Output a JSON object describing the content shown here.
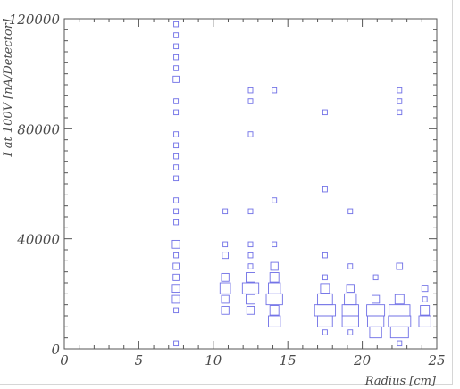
{
  "chart_data": {
    "type": "box_histogram_2d",
    "xlabel": "Radius [cm]",
    "ylabel": "I at 100V [nA/Detector]",
    "xlim": [
      0,
      25
    ],
    "ylim": [
      0,
      120000
    ],
    "x_ticks": [
      "0",
      "5",
      "10",
      "15",
      "20",
      "25"
    ],
    "y_ticks": [
      "0",
      "40000",
      "80000",
      "120000"
    ],
    "x_tick_values": [
      0,
      5,
      10,
      15,
      20,
      25
    ],
    "y_tick_values": [
      0,
      40000,
      80000,
      120000
    ],
    "box_color": "#6f6fe6",
    "bin_height": 2000,
    "cells": [
      {
        "x": 7.5,
        "y": 118000,
        "w": 0.3
      },
      {
        "x": 7.5,
        "y": 114000,
        "w": 0.3
      },
      {
        "x": 7.5,
        "y": 110000,
        "w": 0.3
      },
      {
        "x": 7.5,
        "y": 106000,
        "w": 0.3
      },
      {
        "x": 7.5,
        "y": 102000,
        "w": 0.3
      },
      {
        "x": 7.5,
        "y": 98000,
        "w": 0.4
      },
      {
        "x": 7.5,
        "y": 90000,
        "w": 0.3
      },
      {
        "x": 7.5,
        "y": 86000,
        "w": 0.3
      },
      {
        "x": 7.5,
        "y": 78000,
        "w": 0.3
      },
      {
        "x": 7.5,
        "y": 74000,
        "w": 0.3
      },
      {
        "x": 7.5,
        "y": 70000,
        "w": 0.3
      },
      {
        "x": 7.5,
        "y": 66000,
        "w": 0.3
      },
      {
        "x": 7.5,
        "y": 62000,
        "w": 0.3
      },
      {
        "x": 7.5,
        "y": 54000,
        "w": 0.3
      },
      {
        "x": 7.5,
        "y": 50000,
        "w": 0.3
      },
      {
        "x": 7.5,
        "y": 46000,
        "w": 0.3
      },
      {
        "x": 7.5,
        "y": 38000,
        "w": 0.5
      },
      {
        "x": 7.5,
        "y": 34000,
        "w": 0.3
      },
      {
        "x": 7.5,
        "y": 30000,
        "w": 0.4
      },
      {
        "x": 7.5,
        "y": 26000,
        "w": 0.4
      },
      {
        "x": 7.5,
        "y": 22000,
        "w": 0.5
      },
      {
        "x": 7.5,
        "y": 18000,
        "w": 0.5
      },
      {
        "x": 7.5,
        "y": 14000,
        "w": 0.3
      },
      {
        "x": 7.5,
        "y": 2000,
        "w": 0.3
      },
      {
        "x": 10.8,
        "y": 50000,
        "w": 0.3
      },
      {
        "x": 10.8,
        "y": 38000,
        "w": 0.3
      },
      {
        "x": 10.8,
        "y": 34000,
        "w": 0.4
      },
      {
        "x": 10.8,
        "y": 26000,
        "w": 0.5
      },
      {
        "x": 10.8,
        "y": 22000,
        "w": 0.7
      },
      {
        "x": 10.8,
        "y": 18000,
        "w": 0.5
      },
      {
        "x": 10.8,
        "y": 14000,
        "w": 0.5
      },
      {
        "x": 12.5,
        "y": 94000,
        "w": 0.3
      },
      {
        "x": 12.5,
        "y": 90000,
        "w": 0.3
      },
      {
        "x": 12.5,
        "y": 78000,
        "w": 0.3
      },
      {
        "x": 12.5,
        "y": 50000,
        "w": 0.3
      },
      {
        "x": 12.5,
        "y": 38000,
        "w": 0.3
      },
      {
        "x": 12.5,
        "y": 34000,
        "w": 0.3
      },
      {
        "x": 12.5,
        "y": 30000,
        "w": 0.3
      },
      {
        "x": 12.5,
        "y": 26000,
        "w": 0.6
      },
      {
        "x": 12.5,
        "y": 22000,
        "w": 1.1
      },
      {
        "x": 12.5,
        "y": 18000,
        "w": 0.6
      },
      {
        "x": 12.5,
        "y": 14000,
        "w": 0.5
      },
      {
        "x": 14.1,
        "y": 94000,
        "w": 0.3
      },
      {
        "x": 14.1,
        "y": 54000,
        "w": 0.3
      },
      {
        "x": 14.1,
        "y": 38000,
        "w": 0.3
      },
      {
        "x": 14.1,
        "y": 30000,
        "w": 0.5
      },
      {
        "x": 14.1,
        "y": 26000,
        "w": 0.6
      },
      {
        "x": 14.1,
        "y": 22000,
        "w": 0.8
      },
      {
        "x": 14.1,
        "y": 18000,
        "w": 1.1
      },
      {
        "x": 14.1,
        "y": 14000,
        "w": 0.6
      },
      {
        "x": 14.1,
        "y": 10000,
        "w": 0.8
      },
      {
        "x": 17.5,
        "y": 86000,
        "w": 0.3
      },
      {
        "x": 17.5,
        "y": 58000,
        "w": 0.3
      },
      {
        "x": 17.5,
        "y": 34000,
        "w": 0.3
      },
      {
        "x": 17.5,
        "y": 26000,
        "w": 0.3
      },
      {
        "x": 17.5,
        "y": 22000,
        "w": 0.6
      },
      {
        "x": 17.5,
        "y": 18000,
        "w": 1.0
      },
      {
        "x": 17.5,
        "y": 14000,
        "w": 1.4
      },
      {
        "x": 17.5,
        "y": 10000,
        "w": 1.0
      },
      {
        "x": 17.5,
        "y": 6000,
        "w": 0.3
      },
      {
        "x": 19.2,
        "y": 50000,
        "w": 0.3
      },
      {
        "x": 19.2,
        "y": 30000,
        "w": 0.3
      },
      {
        "x": 19.2,
        "y": 22000,
        "w": 0.5
      },
      {
        "x": 19.2,
        "y": 18000,
        "w": 0.8
      },
      {
        "x": 19.2,
        "y": 14000,
        "w": 1.1
      },
      {
        "x": 19.2,
        "y": 10000,
        "w": 1.1
      },
      {
        "x": 19.2,
        "y": 6000,
        "w": 0.3
      },
      {
        "x": 20.9,
        "y": 26000,
        "w": 0.3
      },
      {
        "x": 20.9,
        "y": 18000,
        "w": 0.5
      },
      {
        "x": 20.9,
        "y": 14000,
        "w": 1.2
      },
      {
        "x": 20.9,
        "y": 10000,
        "w": 1.1
      },
      {
        "x": 20.9,
        "y": 6000,
        "w": 0.8
      },
      {
        "x": 22.5,
        "y": 94000,
        "w": 0.3
      },
      {
        "x": 22.5,
        "y": 90000,
        "w": 0.3
      },
      {
        "x": 22.5,
        "y": 86000,
        "w": 0.3
      },
      {
        "x": 22.5,
        "y": 30000,
        "w": 0.4
      },
      {
        "x": 22.5,
        "y": 18000,
        "w": 0.6
      },
      {
        "x": 22.5,
        "y": 14000,
        "w": 1.4
      },
      {
        "x": 22.5,
        "y": 10000,
        "w": 1.5
      },
      {
        "x": 22.5,
        "y": 6000,
        "w": 1.2
      },
      {
        "x": 22.5,
        "y": 2000,
        "w": 0.3
      },
      {
        "x": 24.2,
        "y": 22000,
        "w": 0.4
      },
      {
        "x": 24.2,
        "y": 18000,
        "w": 0.3
      },
      {
        "x": 24.2,
        "y": 14000,
        "w": 0.6
      },
      {
        "x": 24.2,
        "y": 10000,
        "w": 0.8
      }
    ]
  }
}
